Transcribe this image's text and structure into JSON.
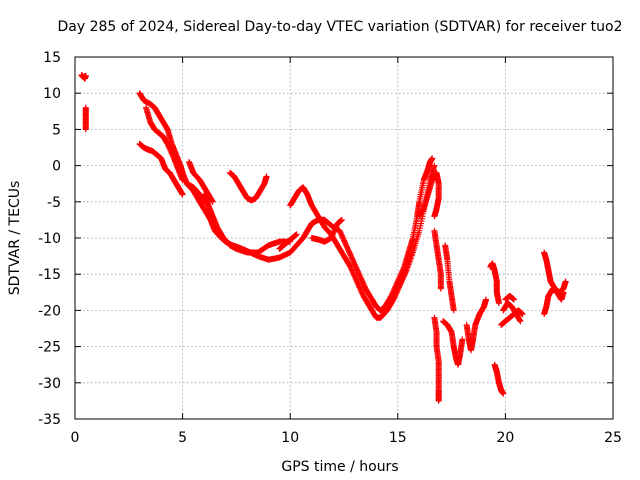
{
  "chart_data": {
    "type": "scatter",
    "title": "Day 285 of 2024, Sidereal Day-to-day VTEC variation (SDTVAR) for receiver tuo2",
    "xlabel": "GPS time / hours",
    "ylabel": "SDTVAR / TECUs",
    "xlim": [
      0,
      25
    ],
    "ylim": [
      -35,
      15
    ],
    "xticks": [
      0,
      5,
      10,
      15,
      20,
      25
    ],
    "yticks": [
      15,
      10,
      5,
      0,
      -5,
      -10,
      -15,
      -20,
      -25,
      -30,
      -35
    ],
    "grid": true,
    "marker": "+",
    "series": [
      {
        "name": "tuo2",
        "color": "#ff0000",
        "segments": [
          [
            [
              0.3,
              12.5
            ],
            [
              0.4,
              12.2
            ],
            [
              0.5,
              12.4
            ],
            [
              0.45,
              12.0
            ]
          ],
          [
            [
              0.5,
              8.0
            ],
            [
              0.5,
              6.5
            ],
            [
              0.5,
              5.0
            ]
          ],
          [
            [
              3.0,
              10.0
            ],
            [
              3.2,
              9.0
            ],
            [
              3.5,
              8.5
            ],
            [
              3.7,
              8.0
            ],
            [
              3.9,
              7.0
            ],
            [
              4.1,
              6.0
            ],
            [
              4.3,
              5.0
            ],
            [
              4.5,
              3.0
            ],
            [
              4.7,
              1.5
            ],
            [
              4.9,
              0.0
            ],
            [
              5.0,
              -1.0
            ],
            [
              5.2,
              -2.5
            ],
            [
              5.5,
              -3.0
            ],
            [
              5.8,
              -4.0
            ],
            [
              6.0,
              -5.0
            ]
          ],
          [
            [
              3.0,
              3.0
            ],
            [
              3.2,
              2.5
            ],
            [
              3.4,
              2.2
            ],
            [
              3.6,
              2.0
            ],
            [
              3.8,
              1.5
            ],
            [
              4.0,
              1.0
            ],
            [
              4.2,
              -0.5
            ],
            [
              4.4,
              -1.0
            ],
            [
              4.6,
              -2.0
            ],
            [
              4.8,
              -3.0
            ],
            [
              5.0,
              -4.0
            ]
          ],
          [
            [
              3.3,
              8.0
            ],
            [
              3.5,
              6.0
            ],
            [
              3.7,
              5.0
            ],
            [
              3.9,
              4.5
            ],
            [
              4.1,
              4.0
            ],
            [
              4.3,
              3.0
            ],
            [
              4.6,
              1.0
            ],
            [
              4.8,
              -0.5
            ],
            [
              5.0,
              -2.0
            ]
          ],
          [
            [
              5.2,
              -2.5
            ],
            [
              5.5,
              -3.5
            ],
            [
              5.8,
              -5.0
            ],
            [
              6.0,
              -6.0
            ],
            [
              6.3,
              -7.5
            ],
            [
              6.5,
              -9.0
            ],
            [
              6.8,
              -10.0
            ],
            [
              7.0,
              -10.5
            ],
            [
              7.3,
              -11.0
            ],
            [
              7.6,
              -11.3
            ],
            [
              8.0,
              -11.8
            ],
            [
              8.5,
              -12.5
            ],
            [
              9.0,
              -13.0
            ],
            [
              9.5,
              -12.7
            ],
            [
              10.0,
              -12.0
            ],
            [
              10.3,
              -11.0
            ],
            [
              10.6,
              -10.0
            ],
            [
              10.8,
              -9.0
            ],
            [
              11.0,
              -8.0
            ],
            [
              11.3,
              -7.5
            ],
            [
              11.6,
              -7.5
            ],
            [
              12.0,
              -8.5
            ],
            [
              12.3,
              -9.0
            ],
            [
              12.6,
              -11.0
            ],
            [
              12.9,
              -13.0
            ],
            [
              13.2,
              -15.0
            ],
            [
              13.5,
              -17.0
            ],
            [
              13.8,
              -18.5
            ],
            [
              14.0,
              -19.5
            ],
            [
              14.2,
              -20.0
            ],
            [
              14.4,
              -19.5
            ],
            [
              14.7,
              -18.0
            ],
            [
              15.0,
              -16.0
            ],
            [
              15.3,
              -14.0
            ],
            [
              15.5,
              -12.0
            ],
            [
              15.7,
              -10.0
            ],
            [
              15.9,
              -7.0
            ],
            [
              16.0,
              -5.0
            ],
            [
              16.2,
              -2.0
            ],
            [
              16.4,
              -0.5
            ],
            [
              16.5,
              0.5
            ],
            [
              16.6,
              1.0
            ]
          ],
          [
            [
              6.0,
              -4.0
            ],
            [
              6.2,
              -5.5
            ],
            [
              6.4,
              -7.0
            ],
            [
              6.6,
              -8.5
            ],
            [
              6.9,
              -10.0
            ],
            [
              7.2,
              -11.0
            ],
            [
              7.5,
              -11.5
            ],
            [
              8.0,
              -12.0
            ],
            [
              8.5,
              -12.0
            ],
            [
              9.0,
              -11.0
            ],
            [
              9.5,
              -10.5
            ],
            [
              10.0,
              -10.5
            ]
          ],
          [
            [
              5.3,
              0.5
            ],
            [
              5.5,
              -1.0
            ],
            [
              5.8,
              -2.0
            ],
            [
              6.0,
              -3.0
            ],
            [
              6.2,
              -4.0
            ],
            [
              6.4,
              -5.0
            ]
          ],
          [
            [
              7.2,
              -1.0
            ],
            [
              7.4,
              -1.5
            ],
            [
              7.6,
              -2.5
            ],
            [
              7.8,
              -3.5
            ],
            [
              8.0,
              -4.5
            ],
            [
              8.2,
              -4.8
            ],
            [
              8.4,
              -4.5
            ],
            [
              8.6,
              -3.5
            ],
            [
              8.8,
              -2.5
            ],
            [
              8.9,
              -1.5
            ]
          ],
          [
            [
              9.5,
              -11.5
            ],
            [
              9.7,
              -11.0
            ],
            [
              9.9,
              -10.5
            ],
            [
              10.1,
              -10.0
            ],
            [
              10.3,
              -9.5
            ]
          ],
          [
            [
              10.0,
              -5.5
            ],
            [
              10.2,
              -4.5
            ],
            [
              10.4,
              -3.5
            ],
            [
              10.6,
              -3.0
            ],
            [
              10.8,
              -4.0
            ],
            [
              11.0,
              -5.5
            ],
            [
              11.3,
              -7.0
            ],
            [
              11.6,
              -8.5
            ],
            [
              11.9,
              -9.5
            ],
            [
              12.2,
              -11.0
            ],
            [
              12.5,
              -12.5
            ],
            [
              12.8,
              -14.0
            ],
            [
              13.1,
              -16.0
            ],
            [
              13.4,
              -18.0
            ],
            [
              13.7,
              -19.5
            ],
            [
              14.0,
              -21.0
            ],
            [
              14.2,
              -21.0
            ],
            [
              14.5,
              -20.0
            ],
            [
              14.8,
              -18.5
            ],
            [
              15.1,
              -16.5
            ],
            [
              15.4,
              -14.5
            ],
            [
              15.7,
              -12.0
            ],
            [
              16.0,
              -9.0
            ],
            [
              16.3,
              -5.0
            ],
            [
              16.5,
              -2.0
            ],
            [
              16.7,
              0.0
            ]
          ],
          [
            [
              11.0,
              -10.0
            ],
            [
              11.3,
              -10.2
            ],
            [
              11.6,
              -10.5
            ],
            [
              11.9,
              -10.0
            ],
            [
              12.2,
              -8.0
            ],
            [
              12.4,
              -7.5
            ]
          ],
          [
            [
              16.0,
              -7.0
            ],
            [
              16.2,
              -6.0
            ],
            [
              16.4,
              -4.0
            ],
            [
              16.6,
              -2.0
            ],
            [
              16.8,
              -1.0
            ],
            [
              16.9,
              -2.5
            ],
            [
              16.9,
              -4.5
            ],
            [
              16.8,
              -6.0
            ],
            [
              16.7,
              -7.0
            ]
          ],
          [
            [
              16.7,
              -9.0
            ],
            [
              16.8,
              -11.0
            ],
            [
              16.9,
              -13.0
            ],
            [
              17.0,
              -15.0
            ],
            [
              17.0,
              -17.0
            ]
          ],
          [
            [
              16.7,
              -21.0
            ],
            [
              16.8,
              -23.0
            ],
            [
              16.8,
              -25.0
            ],
            [
              16.9,
              -27.0
            ],
            [
              16.9,
              -29.0
            ],
            [
              16.9,
              -31.0
            ],
            [
              16.9,
              -32.5
            ]
          ],
          [
            [
              17.1,
              -21.5
            ],
            [
              17.3,
              -22.0
            ],
            [
              17.5,
              -23.0
            ],
            [
              17.6,
              -25.0
            ],
            [
              17.7,
              -26.5
            ],
            [
              17.8,
              -27.5
            ],
            [
              17.9,
              -26.0
            ],
            [
              18.0,
              -24.0
            ]
          ],
          [
            [
              17.2,
              -11.0
            ],
            [
              17.3,
              -13.0
            ],
            [
              17.4,
              -16.0
            ],
            [
              17.5,
              -18.0
            ],
            [
              17.6,
              -20.0
            ]
          ],
          [
            [
              18.2,
              -22.0
            ],
            [
              18.3,
              -24.0
            ],
            [
              18.4,
              -25.5
            ],
            [
              18.5,
              -24.0
            ],
            [
              18.6,
              -22.0
            ],
            [
              18.8,
              -20.5
            ],
            [
              19.0,
              -19.5
            ],
            [
              19.1,
              -18.5
            ]
          ],
          [
            [
              19.3,
              -14.0
            ],
            [
              19.4,
              -13.5
            ],
            [
              19.5,
              -14.5
            ],
            [
              19.6,
              -16.0
            ],
            [
              19.6,
              -17.5
            ],
            [
              19.7,
              -19.0
            ]
          ],
          [
            [
              19.5,
              -27.5
            ],
            [
              19.6,
              -28.5
            ],
            [
              19.7,
              -30.0
            ],
            [
              19.8,
              -31.0
            ],
            [
              19.9,
              -31.5
            ]
          ],
          [
            [
              19.8,
              -22.0
            ],
            [
              20.0,
              -21.5
            ],
            [
              20.2,
              -21.0
            ],
            [
              20.4,
              -20.5
            ],
            [
              20.6,
              -20.0
            ],
            [
              20.8,
              -20.5
            ]
          ],
          [
            [
              19.9,
              -20.0
            ],
            [
              20.1,
              -19.0
            ],
            [
              20.3,
              -19.5
            ],
            [
              20.5,
              -20.5
            ],
            [
              20.7,
              -21.5
            ]
          ],
          [
            [
              20.0,
              -18.5
            ],
            [
              20.2,
              -18.0
            ],
            [
              20.4,
              -18.5
            ]
          ],
          [
            [
              21.8,
              -12.0
            ],
            [
              21.9,
              -13.0
            ],
            [
              22.0,
              -14.5
            ],
            [
              22.1,
              -16.0
            ],
            [
              22.3,
              -17.0
            ],
            [
              22.5,
              -17.5
            ],
            [
              22.7,
              -17.0
            ],
            [
              22.8,
              -16.0
            ]
          ],
          [
            [
              21.8,
              -20.5
            ],
            [
              21.9,
              -19.5
            ],
            [
              22.0,
              -18.0
            ],
            [
              22.2,
              -17.0
            ],
            [
              22.4,
              -17.5
            ],
            [
              22.6,
              -18.5
            ],
            [
              22.7,
              -17.5
            ]
          ]
        ]
      }
    ]
  }
}
